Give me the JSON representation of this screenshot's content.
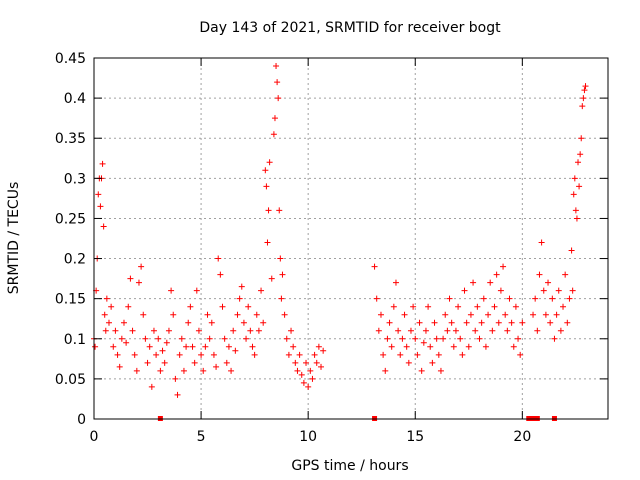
{
  "chart_data": {
    "type": "scatter",
    "title": "Day 143 of 2021, SRMTID for receiver bogt",
    "xlabel": "GPS time / hours",
    "ylabel": "SRMTID / TECUs",
    "xlim": [
      0,
      24
    ],
    "ylim": [
      0,
      0.45
    ],
    "x_ticks": [
      0,
      5,
      10,
      15,
      20
    ],
    "x_tick_labels": [
      "0",
      "5",
      "10",
      "15",
      "20"
    ],
    "y_ticks": [
      0,
      0.05,
      0.1,
      0.15,
      0.2,
      0.25,
      0.3,
      0.35,
      0.4,
      0.45
    ],
    "y_tick_labels": [
      "0",
      "0.05",
      "0.1",
      "0.15",
      "0.2",
      "0.25",
      "0.3",
      "0.35",
      "0.4",
      "0.45"
    ],
    "grid": true,
    "marker": "+",
    "series_color": "#ff0000",
    "gap_markers_x": [
      3.1,
      13.1,
      20.3,
      20.5,
      20.7,
      21.5
    ],
    "series": [
      {
        "name": "SRMTID",
        "points": [
          [
            0.0,
            0.1
          ],
          [
            0.05,
            0.09
          ],
          [
            0.1,
            0.16
          ],
          [
            0.15,
            0.2
          ],
          [
            0.2,
            0.28
          ],
          [
            0.25,
            0.3
          ],
          [
            0.3,
            0.265
          ],
          [
            0.35,
            0.3
          ],
          [
            0.4,
            0.318
          ],
          [
            0.45,
            0.24
          ],
          [
            0.5,
            0.13
          ],
          [
            0.55,
            0.11
          ],
          [
            0.6,
            0.15
          ],
          [
            0.7,
            0.12
          ],
          [
            0.8,
            0.14
          ],
          [
            0.9,
            0.09
          ],
          [
            1.0,
            0.11
          ],
          [
            1.1,
            0.08
          ],
          [
            1.2,
            0.065
          ],
          [
            1.3,
            0.1
          ],
          [
            1.4,
            0.12
          ],
          [
            1.5,
            0.095
          ],
          [
            1.6,
            0.14
          ],
          [
            1.7,
            0.175
          ],
          [
            1.8,
            0.11
          ],
          [
            1.9,
            0.08
          ],
          [
            2.0,
            0.06
          ],
          [
            2.1,
            0.17
          ],
          [
            2.2,
            0.19
          ],
          [
            2.3,
            0.13
          ],
          [
            2.4,
            0.1
          ],
          [
            2.5,
            0.07
          ],
          [
            2.6,
            0.09
          ],
          [
            2.7,
            0.04
          ],
          [
            2.8,
            0.11
          ],
          [
            2.9,
            0.08
          ],
          [
            3.0,
            0.1
          ],
          [
            3.1,
            0.06
          ],
          [
            3.2,
            0.085
          ],
          [
            3.3,
            0.07
          ],
          [
            3.4,
            0.095
          ],
          [
            3.5,
            0.11
          ],
          [
            3.6,
            0.16
          ],
          [
            3.7,
            0.13
          ],
          [
            3.8,
            0.05
          ],
          [
            3.9,
            0.03
          ],
          [
            4.0,
            0.08
          ],
          [
            4.1,
            0.1
          ],
          [
            4.2,
            0.06
          ],
          [
            4.3,
            0.09
          ],
          [
            4.4,
            0.12
          ],
          [
            4.5,
            0.14
          ],
          [
            4.6,
            0.09
          ],
          [
            4.7,
            0.07
          ],
          [
            4.8,
            0.16
          ],
          [
            4.9,
            0.11
          ],
          [
            5.0,
            0.08
          ],
          [
            5.1,
            0.06
          ],
          [
            5.2,
            0.09
          ],
          [
            5.3,
            0.13
          ],
          [
            5.4,
            0.1
          ],
          [
            5.5,
            0.12
          ],
          [
            5.6,
            0.08
          ],
          [
            5.7,
            0.065
          ],
          [
            5.8,
            0.2
          ],
          [
            5.9,
            0.18
          ],
          [
            6.0,
            0.14
          ],
          [
            6.1,
            0.1
          ],
          [
            6.2,
            0.07
          ],
          [
            6.3,
            0.09
          ],
          [
            6.4,
            0.06
          ],
          [
            6.5,
            0.11
          ],
          [
            6.6,
            0.085
          ],
          [
            6.7,
            0.13
          ],
          [
            6.8,
            0.15
          ],
          [
            6.9,
            0.165
          ],
          [
            7.0,
            0.12
          ],
          [
            7.1,
            0.1
          ],
          [
            7.2,
            0.14
          ],
          [
            7.3,
            0.11
          ],
          [
            7.4,
            0.09
          ],
          [
            7.5,
            0.08
          ],
          [
            7.6,
            0.13
          ],
          [
            7.7,
            0.11
          ],
          [
            7.8,
            0.16
          ],
          [
            7.9,
            0.12
          ],
          [
            8.0,
            0.31
          ],
          [
            8.05,
            0.29
          ],
          [
            8.1,
            0.22
          ],
          [
            8.15,
            0.26
          ],
          [
            8.2,
            0.32
          ],
          [
            8.3,
            0.175
          ],
          [
            8.4,
            0.355
          ],
          [
            8.45,
            0.375
          ],
          [
            8.5,
            0.44
          ],
          [
            8.55,
            0.42
          ],
          [
            8.6,
            0.4
          ],
          [
            8.65,
            0.26
          ],
          [
            8.7,
            0.2
          ],
          [
            8.75,
            0.15
          ],
          [
            8.8,
            0.18
          ],
          [
            8.9,
            0.13
          ],
          [
            9.0,
            0.1
          ],
          [
            9.1,
            0.08
          ],
          [
            9.2,
            0.11
          ],
          [
            9.3,
            0.09
          ],
          [
            9.4,
            0.07
          ],
          [
            9.5,
            0.06
          ],
          [
            9.6,
            0.08
          ],
          [
            9.7,
            0.055
          ],
          [
            9.8,
            0.045
          ],
          [
            9.9,
            0.07
          ],
          [
            10.0,
            0.04
          ],
          [
            10.1,
            0.06
          ],
          [
            10.2,
            0.05
          ],
          [
            10.3,
            0.08
          ],
          [
            10.4,
            0.07
          ],
          [
            10.5,
            0.09
          ],
          [
            10.6,
            0.065
          ],
          [
            10.7,
            0.085
          ],
          [
            13.1,
            0.19
          ],
          [
            13.2,
            0.15
          ],
          [
            13.3,
            0.11
          ],
          [
            13.4,
            0.13
          ],
          [
            13.5,
            0.08
          ],
          [
            13.6,
            0.06
          ],
          [
            13.7,
            0.1
          ],
          [
            13.8,
            0.12
          ],
          [
            13.9,
            0.09
          ],
          [
            14.0,
            0.14
          ],
          [
            14.1,
            0.17
          ],
          [
            14.2,
            0.11
          ],
          [
            14.3,
            0.08
          ],
          [
            14.4,
            0.1
          ],
          [
            14.5,
            0.13
          ],
          [
            14.6,
            0.09
          ],
          [
            14.7,
            0.07
          ],
          [
            14.8,
            0.11
          ],
          [
            14.9,
            0.14
          ],
          [
            15.0,
            0.1
          ],
          [
            15.1,
            0.08
          ],
          [
            15.2,
            0.12
          ],
          [
            15.3,
            0.06
          ],
          [
            15.4,
            0.095
          ],
          [
            15.5,
            0.11
          ],
          [
            15.6,
            0.14
          ],
          [
            15.7,
            0.09
          ],
          [
            15.8,
            0.07
          ],
          [
            15.9,
            0.12
          ],
          [
            16.0,
            0.1
          ],
          [
            16.1,
            0.08
          ],
          [
            16.2,
            0.06
          ],
          [
            16.3,
            0.1
          ],
          [
            16.4,
            0.13
          ],
          [
            16.5,
            0.11
          ],
          [
            16.6,
            0.15
          ],
          [
            16.7,
            0.12
          ],
          [
            16.8,
            0.09
          ],
          [
            16.9,
            0.11
          ],
          [
            17.0,
            0.14
          ],
          [
            17.1,
            0.1
          ],
          [
            17.2,
            0.08
          ],
          [
            17.3,
            0.16
          ],
          [
            17.4,
            0.12
          ],
          [
            17.5,
            0.09
          ],
          [
            17.6,
            0.13
          ],
          [
            17.7,
            0.17
          ],
          [
            17.8,
            0.11
          ],
          [
            17.9,
            0.14
          ],
          [
            18.0,
            0.1
          ],
          [
            18.1,
            0.12
          ],
          [
            18.2,
            0.15
          ],
          [
            18.3,
            0.09
          ],
          [
            18.4,
            0.13
          ],
          [
            18.5,
            0.17
          ],
          [
            18.6,
            0.11
          ],
          [
            18.7,
            0.14
          ],
          [
            18.8,
            0.18
          ],
          [
            18.9,
            0.12
          ],
          [
            19.0,
            0.16
          ],
          [
            19.1,
            0.19
          ],
          [
            19.2,
            0.13
          ],
          [
            19.3,
            0.11
          ],
          [
            19.4,
            0.15
          ],
          [
            19.5,
            0.12
          ],
          [
            19.6,
            0.09
          ],
          [
            19.7,
            0.14
          ],
          [
            19.8,
            0.1
          ],
          [
            19.9,
            0.08
          ],
          [
            20.0,
            0.12
          ],
          [
            20.5,
            0.13
          ],
          [
            20.6,
            0.15
          ],
          [
            20.7,
            0.11
          ],
          [
            20.8,
            0.18
          ],
          [
            20.9,
            0.22
          ],
          [
            21.0,
            0.16
          ],
          [
            21.1,
            0.13
          ],
          [
            21.2,
            0.17
          ],
          [
            21.3,
            0.12
          ],
          [
            21.4,
            0.15
          ],
          [
            21.5,
            0.1
          ],
          [
            21.6,
            0.13
          ],
          [
            21.7,
            0.16
          ],
          [
            21.8,
            0.11
          ],
          [
            21.9,
            0.14
          ],
          [
            22.0,
            0.18
          ],
          [
            22.1,
            0.12
          ],
          [
            22.2,
            0.15
          ],
          [
            22.3,
            0.21
          ],
          [
            22.35,
            0.16
          ],
          [
            22.4,
            0.28
          ],
          [
            22.45,
            0.3
          ],
          [
            22.5,
            0.26
          ],
          [
            22.55,
            0.25
          ],
          [
            22.6,
            0.32
          ],
          [
            22.65,
            0.29
          ],
          [
            22.7,
            0.33
          ],
          [
            22.75,
            0.35
          ],
          [
            22.8,
            0.39
          ],
          [
            22.85,
            0.4
          ],
          [
            22.9,
            0.41
          ],
          [
            22.95,
            0.415
          ]
        ]
      }
    ]
  }
}
